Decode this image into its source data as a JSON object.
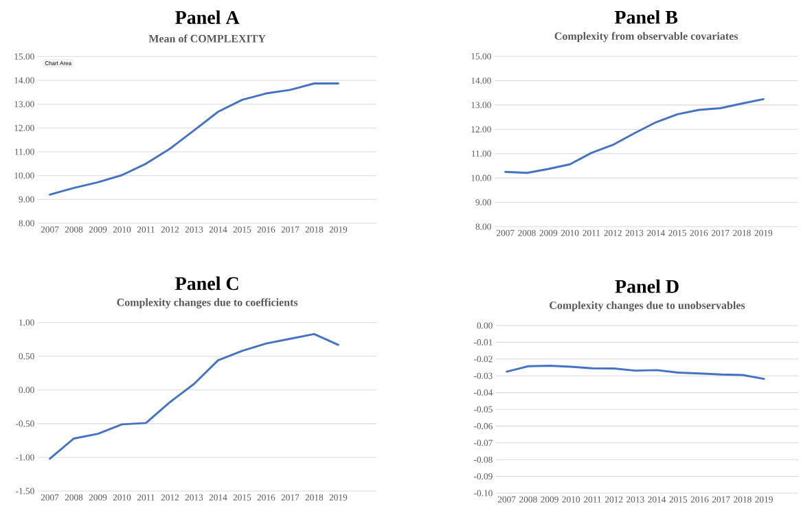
{
  "chart_data": [
    {
      "type": "line",
      "title": "Panel A",
      "subtitle": "Mean of COMPLEXITY",
      "annotations": [
        "Chart Area"
      ],
      "categories": [
        "2007",
        "2008",
        "2009",
        "2010",
        "2011",
        "2012",
        "2013",
        "2014",
        "2015",
        "2016",
        "2017",
        "2018",
        "2019"
      ],
      "series": [
        {
          "color": "#4472c4",
          "values": [
            9.2,
            9.48,
            9.72,
            10.02,
            10.5,
            11.13,
            11.9,
            12.68,
            13.18,
            13.45,
            13.6,
            13.87,
            13.87
          ]
        }
      ],
      "ylim": [
        8,
        15
      ],
      "yticks": [
        {
          "value": 8,
          "label": "8.00"
        },
        {
          "value": 9,
          "label": "9.00"
        },
        {
          "value": 10,
          "label": "10.00"
        },
        {
          "value": 11,
          "label": "11.00"
        },
        {
          "value": 12,
          "label": "12.00"
        },
        {
          "value": 13,
          "label": "13.00"
        },
        {
          "value": 14,
          "label": "14.00"
        },
        {
          "value": 15,
          "label": "15.00"
        }
      ],
      "grid": "y"
    },
    {
      "type": "line",
      "title": "Panel B",
      "subtitle": "Complexity from observable covariates",
      "categories": [
        "2007",
        "2008",
        "2009",
        "2010",
        "2011",
        "2012",
        "2013",
        "2014",
        "2015",
        "2016",
        "2017",
        "2018",
        "2019"
      ],
      "series": [
        {
          "color": "#4472c4",
          "values": [
            10.25,
            10.21,
            10.37,
            10.56,
            11.03,
            11.36,
            11.84,
            12.29,
            12.62,
            12.8,
            12.87,
            13.06,
            13.24
          ]
        }
      ],
      "ylim": [
        8,
        15
      ],
      "yticks": [
        {
          "value": 8,
          "label": "8.00"
        },
        {
          "value": 9,
          "label": "9.00"
        },
        {
          "value": 10,
          "label": "10.00"
        },
        {
          "value": 11,
          "label": "11.00"
        },
        {
          "value": 12,
          "label": "12.00"
        },
        {
          "value": 13,
          "label": "13.00"
        },
        {
          "value": 14,
          "label": "14.00"
        },
        {
          "value": 15,
          "label": "15.00"
        }
      ],
      "grid": "y"
    },
    {
      "type": "line",
      "title": "Panel C",
      "subtitle": "Complexity changes due to coefficients",
      "categories": [
        "2007",
        "2008",
        "2009",
        "2010",
        "2011",
        "2012",
        "2013",
        "2014",
        "2015",
        "2016",
        "2017",
        "2018",
        "2019"
      ],
      "series": [
        {
          "color": "#4472c4",
          "values": [
            -1.02,
            -0.72,
            -0.65,
            -0.51,
            -0.49,
            -0.18,
            0.09,
            0.44,
            0.58,
            0.69,
            0.76,
            0.83,
            0.67
          ]
        }
      ],
      "ylim": [
        -1.5,
        1
      ],
      "yticks": [
        {
          "value": -1.5,
          "label": "-1.50"
        },
        {
          "value": -1,
          "label": "-1.00"
        },
        {
          "value": -0.5,
          "label": "-0.50"
        },
        {
          "value": 0,
          "label": "0.00"
        },
        {
          "value": 0.5,
          "label": "0.50"
        },
        {
          "value": 1,
          "label": "1.00"
        }
      ],
      "grid": "y"
    },
    {
      "type": "line",
      "title": "Panel D",
      "subtitle": "Complexity changes due to unobservables",
      "categories": [
        "2007",
        "2008",
        "2009",
        "2010",
        "2011",
        "2012",
        "2013",
        "2014",
        "2015",
        "2016",
        "2017",
        "2018",
        "2019"
      ],
      "series": [
        {
          "color": "#4472c4",
          "values": [
            -0.0275,
            -0.0243,
            -0.024,
            -0.0246,
            -0.0255,
            -0.0256,
            -0.0269,
            -0.0266,
            -0.0281,
            -0.0286,
            -0.0292,
            -0.0295,
            -0.0318
          ]
        }
      ],
      "ylim": [
        -0.1,
        0
      ],
      "yticks": [
        {
          "value": -0.1,
          "label": "-0.10"
        },
        {
          "value": -0.09,
          "label": "-0.09"
        },
        {
          "value": -0.08,
          "label": "-0.08"
        },
        {
          "value": -0.07,
          "label": "-0.07"
        },
        {
          "value": -0.06,
          "label": "-0.06"
        },
        {
          "value": -0.05,
          "label": "-0.05"
        },
        {
          "value": -0.04,
          "label": "-0.04"
        },
        {
          "value": -0.03,
          "label": "-0.03"
        },
        {
          "value": -0.02,
          "label": "-0.02"
        },
        {
          "value": -0.01,
          "label": "-0.01"
        },
        {
          "value": 0,
          "label": "0.00"
        }
      ],
      "grid": "y"
    }
  ]
}
